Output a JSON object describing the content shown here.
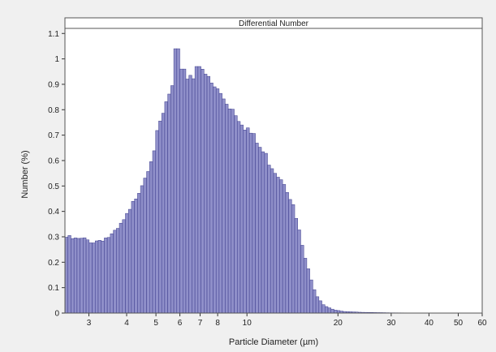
{
  "chart_data": {
    "type": "bar",
    "title": "Differential Number",
    "xlabel": "Particle Diameter (µm)",
    "ylabel": "Number (%)",
    "xscale": "log",
    "xlim": [
      2.5,
      60
    ],
    "ylim": [
      0,
      1.12
    ],
    "grid": false,
    "bar_color": "#8f8fc9",
    "bar_edge_color": "#3c3c8c",
    "x_ticks": [
      {
        "value": 3,
        "label": "3"
      },
      {
        "value": 4,
        "label": "4"
      },
      {
        "value": 5,
        "label": "5"
      },
      {
        "value": 6,
        "label": "6"
      },
      {
        "value": 7,
        "label": "7"
      },
      {
        "value": 8,
        "label": "8"
      },
      {
        "value": 10,
        "label": "10"
      },
      {
        "value": 20,
        "label": "20"
      },
      {
        "value": 30,
        "label": "30"
      },
      {
        "value": 40,
        "label": "40"
      },
      {
        "value": 50,
        "label": "50"
      },
      {
        "value": 60,
        "label": "60"
      }
    ],
    "y_ticks": [
      {
        "value": 0,
        "label": "0"
      },
      {
        "value": 0.1,
        "label": "0.1"
      },
      {
        "value": 0.2,
        "label": "0.2"
      },
      {
        "value": 0.3,
        "label": "0.3"
      },
      {
        "value": 0.4,
        "label": "0.4"
      },
      {
        "value": 0.5,
        "label": "0.5"
      },
      {
        "value": 0.6,
        "label": "0.6"
      },
      {
        "value": 0.7,
        "label": "0.7"
      },
      {
        "value": 0.8,
        "label": "0.8"
      },
      {
        "value": 0.9,
        "label": "0.9"
      },
      {
        "value": 1,
        "label": "1"
      },
      {
        "value": 1.1,
        "label": "1.1"
      }
    ],
    "profile": [
      [
        2.5,
        0.3
      ],
      [
        2.7,
        0.29
      ],
      [
        2.9,
        0.29
      ],
      [
        3.1,
        0.28
      ],
      [
        3.3,
        0.29
      ],
      [
        3.5,
        0.3
      ],
      [
        3.7,
        0.32
      ],
      [
        3.9,
        0.36
      ],
      [
        4.1,
        0.4
      ],
      [
        4.3,
        0.46
      ],
      [
        4.6,
        0.54
      ],
      [
        4.9,
        0.64
      ],
      [
        5.2,
        0.75
      ],
      [
        5.5,
        0.85
      ],
      [
        5.8,
        0.9
      ],
      [
        6.2,
        0.93
      ],
      [
        6.6,
        0.94
      ],
      [
        7.0,
        0.94
      ],
      [
        7.4,
        0.92
      ],
      [
        7.9,
        0.88
      ],
      [
        8.5,
        0.84
      ],
      [
        9.2,
        0.79
      ],
      [
        10.0,
        0.73
      ],
      [
        10.9,
        0.66
      ],
      [
        11.8,
        0.6
      ],
      [
        12.6,
        0.55
      ],
      [
        13.3,
        0.52
      ],
      [
        14.0,
        0.45
      ],
      [
        14.7,
        0.35
      ],
      [
        15.4,
        0.24
      ],
      [
        16.2,
        0.14
      ],
      [
        17.0,
        0.07
      ],
      [
        18.0,
        0.03
      ],
      [
        19.5,
        0.012
      ],
      [
        21.0,
        0.006
      ],
      [
        24.0,
        0.003
      ],
      [
        30.0,
        0.001
      ],
      [
        60.0,
        0.0
      ]
    ],
    "bins_per_decade": 100,
    "notes_visible_peaks": [
      [
        5.85,
        1.04
      ],
      [
        6.15,
        0.96
      ],
      [
        6.9,
        0.97
      ],
      [
        7.3,
        0.94
      ]
    ]
  }
}
